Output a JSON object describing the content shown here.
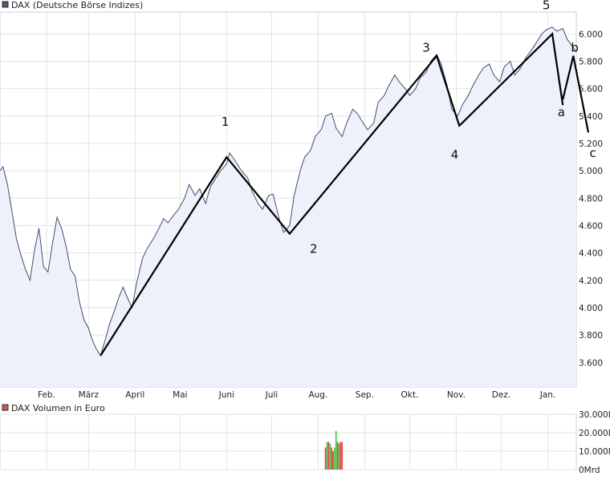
{
  "chart_data": [
    {
      "type": "area",
      "title": "DAX (Deutsche Börse Indizes)",
      "legend_color": "#4a5a78",
      "line_color": "#3d4f72",
      "fill_color": "#eef0fa",
      "grid": true,
      "y_axis_side": "right",
      "ylim": [
        3420,
        6160
      ],
      "y_ticks": [
        3600,
        3800,
        4000,
        4200,
        4400,
        4600,
        4800,
        5000,
        5200,
        5400,
        5600,
        5800,
        6000
      ],
      "y_tick_labels": [
        "3.600",
        "3.800",
        "4.000",
        "4.200",
        "4.400",
        "4.600",
        "4.800",
        "5.000",
        "5.200",
        "5.400",
        "5.600",
        "5.800",
        "6.000"
      ],
      "x_range": [
        "2009-01-01",
        "2010-01-20"
      ],
      "x_tick_labels": [
        {
          "date": "2009-02-01",
          "label": "Feb."
        },
        {
          "date": "2009-03-01",
          "label": "März"
        },
        {
          "date": "2009-04-01",
          "label": "April"
        },
        {
          "date": "2009-05-01",
          "label": "Mai"
        },
        {
          "date": "2009-06-01",
          "label": "Juni"
        },
        {
          "date": "2009-07-01",
          "label": "Juli"
        },
        {
          "date": "2009-08-01",
          "label": "Aug."
        },
        {
          "date": "2009-09-01",
          "label": "Sep."
        },
        {
          "date": "2009-10-01",
          "label": "Okt."
        },
        {
          "date": "2009-11-01",
          "label": "Nov."
        },
        {
          "date": "2009-12-01",
          "label": "Dez."
        },
        {
          "date": "2010-01-01",
          "label": "Jan."
        }
      ],
      "series": [
        {
          "name": "DAX",
          "points": [
            [
              "2009-01-01",
              5000
            ],
            [
              "2009-01-03",
              5030
            ],
            [
              "2009-01-06",
              4900
            ],
            [
              "2009-01-09",
              4700
            ],
            [
              "2009-01-12",
              4500
            ],
            [
              "2009-01-15",
              4380
            ],
            [
              "2009-01-18",
              4280
            ],
            [
              "2009-01-21",
              4200
            ],
            [
              "2009-01-24",
              4420
            ],
            [
              "2009-01-27",
              4580
            ],
            [
              "2009-01-30",
              4300
            ],
            [
              "2009-02-02",
              4260
            ],
            [
              "2009-02-05",
              4470
            ],
            [
              "2009-02-08",
              4660
            ],
            [
              "2009-02-11",
              4580
            ],
            [
              "2009-02-14",
              4450
            ],
            [
              "2009-02-17",
              4280
            ],
            [
              "2009-02-20",
              4230
            ],
            [
              "2009-02-23",
              4040
            ],
            [
              "2009-02-26",
              3910
            ],
            [
              "2009-03-01",
              3850
            ],
            [
              "2009-03-03",
              3780
            ],
            [
              "2009-03-06",
              3700
            ],
            [
              "2009-03-09",
              3650
            ],
            [
              "2009-03-12",
              3760
            ],
            [
              "2009-03-15",
              3880
            ],
            [
              "2009-03-18",
              3970
            ],
            [
              "2009-03-21",
              4070
            ],
            [
              "2009-03-24",
              4150
            ],
            [
              "2009-03-27",
              4070
            ],
            [
              "2009-03-30",
              4000
            ],
            [
              "2009-04-02",
              4180
            ],
            [
              "2009-04-06",
              4360
            ],
            [
              "2009-04-09",
              4430
            ],
            [
              "2009-04-13",
              4500
            ],
            [
              "2009-04-16",
              4560
            ],
            [
              "2009-04-20",
              4650
            ],
            [
              "2009-04-23",
              4620
            ],
            [
              "2009-04-27",
              4680
            ],
            [
              "2009-04-30",
              4720
            ],
            [
              "2009-05-04",
              4800
            ],
            [
              "2009-05-07",
              4900
            ],
            [
              "2009-05-11",
              4820
            ],
            [
              "2009-05-14",
              4870
            ],
            [
              "2009-05-18",
              4760
            ],
            [
              "2009-05-21",
              4880
            ],
            [
              "2009-05-25",
              4950
            ],
            [
              "2009-05-28",
              5000
            ],
            [
              "2009-06-01",
              5050
            ],
            [
              "2009-06-03",
              5130
            ],
            [
              "2009-06-05",
              5100
            ],
            [
              "2009-06-08",
              5050
            ],
            [
              "2009-06-11",
              5000
            ],
            [
              "2009-06-15",
              4950
            ],
            [
              "2009-06-18",
              4850
            ],
            [
              "2009-06-22",
              4760
            ],
            [
              "2009-06-25",
              4720
            ],
            [
              "2009-06-29",
              4820
            ],
            [
              "2009-07-02",
              4830
            ],
            [
              "2009-07-06",
              4650
            ],
            [
              "2009-07-09",
              4550
            ],
            [
              "2009-07-13",
              4600
            ],
            [
              "2009-07-16",
              4820
            ],
            [
              "2009-07-20",
              5000
            ],
            [
              "2009-07-23",
              5100
            ],
            [
              "2009-07-27",
              5150
            ],
            [
              "2009-07-30",
              5250
            ],
            [
              "2009-08-03",
              5300
            ],
            [
              "2009-08-06",
              5400
            ],
            [
              "2009-08-10",
              5420
            ],
            [
              "2009-08-13",
              5310
            ],
            [
              "2009-08-17",
              5250
            ],
            [
              "2009-08-20",
              5350
            ],
            [
              "2009-08-24",
              5450
            ],
            [
              "2009-08-27",
              5420
            ],
            [
              "2009-08-31",
              5350
            ],
            [
              "2009-09-03",
              5300
            ],
            [
              "2009-09-07",
              5350
            ],
            [
              "2009-09-10",
              5500
            ],
            [
              "2009-09-14",
              5550
            ],
            [
              "2009-09-17",
              5620
            ],
            [
              "2009-09-21",
              5700
            ],
            [
              "2009-09-24",
              5650
            ],
            [
              "2009-09-28",
              5600
            ],
            [
              "2009-10-01",
              5550
            ],
            [
              "2009-10-05",
              5600
            ],
            [
              "2009-10-08",
              5680
            ],
            [
              "2009-10-12",
              5720
            ],
            [
              "2009-10-15",
              5800
            ],
            [
              "2009-10-19",
              5850
            ],
            [
              "2009-10-22",
              5780
            ],
            [
              "2009-10-26",
              5620
            ],
            [
              "2009-10-29",
              5450
            ],
            [
              "2009-11-02",
              5400
            ],
            [
              "2009-11-05",
              5480
            ],
            [
              "2009-11-09",
              5550
            ],
            [
              "2009-11-12",
              5620
            ],
            [
              "2009-11-16",
              5700
            ],
            [
              "2009-11-19",
              5750
            ],
            [
              "2009-11-23",
              5780
            ],
            [
              "2009-11-26",
              5700
            ],
            [
              "2009-11-30",
              5650
            ],
            [
              "2009-12-03",
              5760
            ],
            [
              "2009-12-07",
              5800
            ],
            [
              "2009-12-10",
              5700
            ],
            [
              "2009-12-14",
              5750
            ],
            [
              "2009-12-17",
              5820
            ],
            [
              "2009-12-21",
              5880
            ],
            [
              "2009-12-24",
              5930
            ],
            [
              "2009-12-28",
              6000
            ],
            [
              "2009-12-31",
              6030
            ],
            [
              "2010-01-04",
              6050
            ],
            [
              "2010-01-07",
              6020
            ],
            [
              "2010-01-11",
              6040
            ],
            [
              "2010-01-14",
              5960
            ],
            [
              "2010-01-18",
              5900
            ],
            [
              "2010-01-20",
              5870
            ]
          ]
        }
      ],
      "annotations": {
        "wave_color": "#000000",
        "waves": [
          {
            "points": [
              [
                "2009-03-09",
                3650
              ],
              [
                "2009-06-01",
                5100
              ],
              [
                "2009-07-13",
                4540
              ],
              [
                "2009-10-19",
                5840
              ],
              [
                "2009-11-03",
                5330
              ],
              [
                "2009-11-05",
                5350
              ],
              [
                "2010-01-04",
                6000
              ],
              [
                "2010-01-11",
                5480
              ]
            ]
          },
          {
            "points": [
              [
                "2010-01-11",
                5520
              ],
              [
                "2010-01-18",
                5840
              ],
              [
                "2010-01-28",
                5280
              ]
            ]
          }
        ],
        "labels": [
          {
            "text": "1",
            "at": [
              "2009-05-31",
              5330
            ]
          },
          {
            "text": "2",
            "at": [
              "2009-07-29",
              4400
            ]
          },
          {
            "text": "3",
            "at": [
              "2009-10-12",
              5870
            ]
          },
          {
            "text": "4",
            "at": [
              "2009-10-31",
              5090
            ]
          },
          {
            "text": "5",
            "at": [
              "2009-12-31",
              6180
            ]
          },
          {
            "text": "a",
            "at": [
              "2010-01-10",
              5400
            ]
          },
          {
            "text": "b",
            "at": [
              "2010-01-19",
              5870
            ]
          },
          {
            "text": "c",
            "at": [
              "2010-01-31",
              5100
            ]
          }
        ]
      }
    },
    {
      "type": "bar",
      "title": "DAX Volumen in Euro",
      "legend_color": "#c85a5a",
      "grid": true,
      "y_axis_side": "right",
      "ylim": [
        0,
        30000
      ],
      "y_ticks": [
        0,
        10000,
        20000,
        30000
      ],
      "y_tick_labels": [
        "0Mrd",
        "10.000M",
        "20.000M",
        "30.000M"
      ],
      "x_range": [
        "2009-01-01",
        "2010-01-20"
      ],
      "series": [
        {
          "name": "DAX Volumen",
          "bars": [
            {
              "date": "2009-08-06",
              "value": 12000,
              "color": "#e24a4a"
            },
            {
              "date": "2009-08-07",
              "value": 15000,
              "color": "#4ccc4c"
            },
            {
              "date": "2009-08-08",
              "value": 15000,
              "color": "#e24a4a"
            },
            {
              "date": "2009-08-09",
              "value": 14000,
              "color": "#4ccc4c"
            },
            {
              "date": "2009-08-10",
              "value": 12000,
              "color": "#e24a4a"
            },
            {
              "date": "2009-08-11",
              "value": 10000,
              "color": "#e24a4a"
            },
            {
              "date": "2009-08-12",
              "value": 12000,
              "color": "#4ccc4c"
            },
            {
              "date": "2009-08-13",
              "value": 21000,
              "color": "#4ccc4c"
            },
            {
              "date": "2009-08-14",
              "value": 15000,
              "color": "#e24a4a"
            },
            {
              "date": "2009-08-15",
              "value": 14000,
              "color": "#4ccc4c"
            },
            {
              "date": "2009-08-16",
              "value": 15000,
              "color": "#e24a4a"
            },
            {
              "date": "2009-08-17",
              "value": 15000,
              "color": "#e24a4a"
            }
          ]
        }
      ]
    }
  ]
}
